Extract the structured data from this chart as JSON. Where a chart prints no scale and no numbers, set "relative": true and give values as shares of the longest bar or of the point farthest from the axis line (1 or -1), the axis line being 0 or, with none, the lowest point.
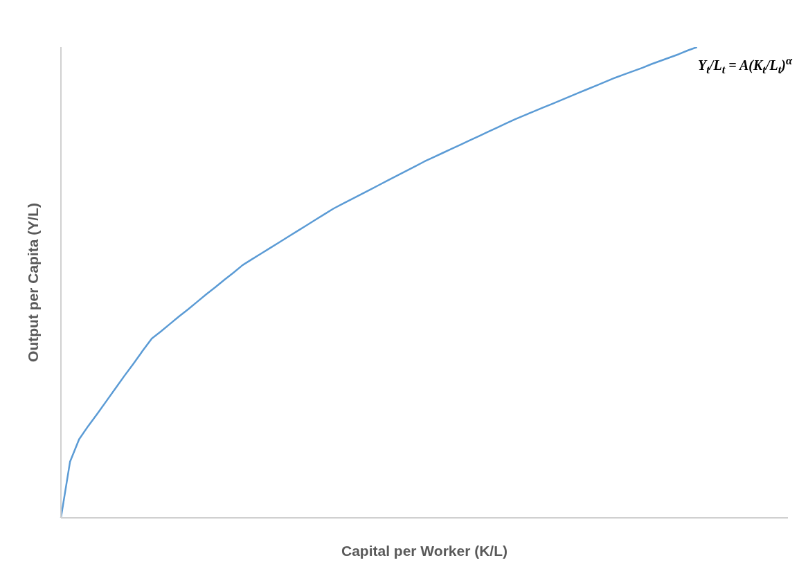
{
  "chart_data": {
    "type": "line",
    "relative": true,
    "xlabel": "Capital per Worker (K/L)",
    "ylabel": "Output per Capita (Y/L)",
    "categories": [
      null,
      null,
      null,
      null,
      null,
      null,
      null,
      null,
      null,
      null,
      null,
      null,
      null,
      null,
      null,
      null,
      null,
      null,
      null,
      null,
      null,
      null,
      null,
      null,
      null,
      null,
      null,
      null,
      null,
      null,
      null,
      null,
      null,
      null,
      null,
      null,
      null,
      null,
      null,
      null,
      null,
      null,
      null,
      null,
      null,
      null,
      null,
      null,
      null,
      null,
      null,
      null,
      null,
      null,
      null,
      null,
      null,
      null,
      null,
      null,
      null,
      null,
      null,
      null,
      null,
      null,
      null,
      null,
      null,
      null,
      null,
      null,
      null,
      null,
      null,
      null,
      null,
      null,
      null,
      null,
      null
    ],
    "series": [
      {
        "color": "#5b9bd5",
        "values": [
          0,
          0.119,
          0.167,
          0.195,
          0.221,
          0.248,
          0.275,
          0.302,
          0.328,
          0.355,
          0.381,
          0.396,
          0.412,
          0.428,
          0.443,
          0.459,
          0.475,
          0.49,
          0.506,
          0.521,
          0.537,
          0.549,
          0.561,
          0.573,
          0.585,
          0.597,
          0.609,
          0.621,
          0.633,
          0.645,
          0.657,
          0.667,
          0.677,
          0.687,
          0.697,
          0.707,
          0.717,
          0.727,
          0.737,
          0.747,
          0.757,
          0.766,
          0.775,
          0.784,
          0.793,
          0.802,
          0.811,
          0.82,
          0.829,
          0.838,
          0.847,
          0.855,
          0.863,
          0.871,
          0.879,
          0.887,
          0.895,
          0.903,
          0.911,
          0.919,
          0.927,
          0.935,
          0.942,
          0.949,
          0.956,
          0.964,
          0.971,
          0.978,
          0.985,
          0.993,
          1,
          null,
          null,
          null,
          null,
          null,
          null,
          null,
          null,
          null,
          null
        ]
      }
    ],
    "annotations": [
      "Y$_{t}$/L$_{t}$ = A(K$_{t}$/L$_{t}$)$^{α}$"
    ],
    "grid": false,
    "legend": false,
    "marker": "none",
    "line_style": "solid"
  }
}
